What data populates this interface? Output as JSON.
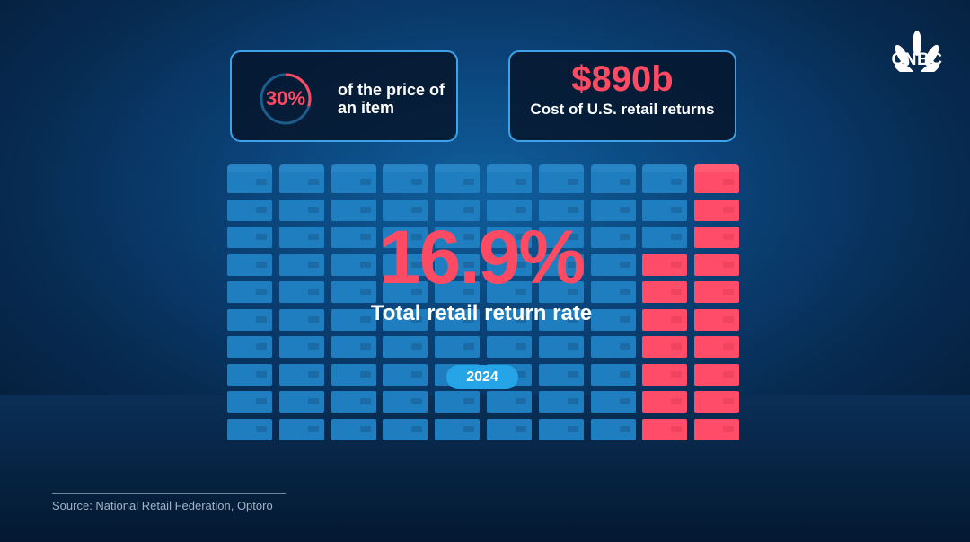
{
  "brand": {
    "logo_text": "CNBC",
    "logo_icon": "peacock-icon"
  },
  "colors": {
    "accent_red": "#ff4a64",
    "box_blue": "#1f7ec0",
    "border_blue": "#3ea2e8",
    "pill_blue": "#25a5e8"
  },
  "stat_price": {
    "percent": "30%",
    "percent_value": 30,
    "label": "of the price of an item"
  },
  "stat_cost": {
    "amount": "$890b",
    "label": "Cost of U.S. retail returns"
  },
  "headline": {
    "value": "16.9%",
    "label": "Total retail return rate",
    "year": "2024"
  },
  "box_grid": {
    "columns": 10,
    "rows": 10,
    "red_filled_per_column": [
      0,
      0,
      0,
      0,
      0,
      0,
      0,
      0,
      7,
      10
    ]
  },
  "source": "Source: National Retail Federation, Optoro"
}
